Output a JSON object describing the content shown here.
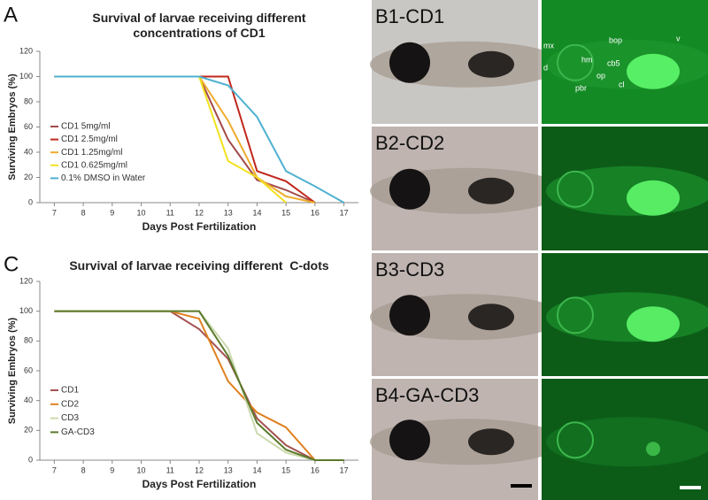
{
  "chart_data": [
    {
      "type": "line",
      "panel_label": "A",
      "title": "Survival of larvae receiving different concentrations of CD1",
      "x_label": "Days Post Fertilization",
      "y_label": "Surviving Embryos (%)",
      "x": [
        7,
        8,
        9,
        10,
        11,
        12,
        13,
        14,
        15,
        16,
        17
      ],
      "xlim": [
        6.5,
        17.5
      ],
      "xticks": [
        7,
        8,
        9,
        10,
        11,
        12,
        13,
        14,
        15,
        16,
        17
      ],
      "ylim": [
        0,
        120
      ],
      "yticks": [
        0,
        20,
        40,
        60,
        80,
        100,
        120
      ],
      "grid": false,
      "legend": "center-left",
      "series": [
        {
          "name": "CD1 5mg/ml",
          "color": "#a34a4a",
          "values": [
            100,
            100,
            100,
            100,
            100,
            100,
            50,
            18,
            10,
            0,
            null
          ]
        },
        {
          "name": "CD1 2.5mg/ml",
          "color": "#c0271c",
          "values": [
            100,
            100,
            100,
            100,
            100,
            100,
            100,
            25,
            17,
            0,
            null
          ]
        },
        {
          "name": "CD1 1.25mg/ml",
          "color": "#efac2e",
          "values": [
            100,
            100,
            100,
            100,
            100,
            100,
            65,
            20,
            5,
            0,
            null
          ]
        },
        {
          "name": "CD1 0.625mg/ml",
          "color": "#f2e21e",
          "values": [
            100,
            100,
            100,
            100,
            100,
            100,
            33,
            20,
            0,
            null,
            null
          ]
        },
        {
          "name": "0.1% DMSO in Water",
          "color": "#4fb1d0",
          "values": [
            100,
            100,
            100,
            100,
            100,
            100,
            93,
            68,
            25,
            13,
            0
          ]
        }
      ]
    },
    {
      "type": "line",
      "panel_label": "C",
      "title": "Survival of larvae receiving different  C-dots",
      "x_label": "Days Post Fertilization",
      "y_label": "Surviving Embryos (%)",
      "x": [
        7,
        8,
        9,
        10,
        11,
        12,
        13,
        14,
        15,
        16,
        17
      ],
      "xlim": [
        6.5,
        17.5
      ],
      "xticks": [
        7,
        8,
        9,
        10,
        11,
        12,
        13,
        14,
        15,
        16,
        17
      ],
      "ylim": [
        0,
        120
      ],
      "yticks": [
        0,
        20,
        40,
        60,
        80,
        100,
        120
      ],
      "grid": false,
      "legend": "lower-left",
      "series": [
        {
          "name": "CD1",
          "color": "#a45252",
          "values": [
            100,
            100,
            100,
            100,
            100,
            88,
            68,
            28,
            10,
            0,
            0
          ]
        },
        {
          "name": "CD2",
          "color": "#e0801e",
          "values": [
            100,
            100,
            100,
            100,
            100,
            95,
            53,
            32,
            22,
            0,
            0
          ]
        },
        {
          "name": "CD3",
          "color": "#cbd9ad",
          "values": [
            100,
            100,
            100,
            100,
            100,
            100,
            75,
            18,
            5,
            0,
            0
          ]
        },
        {
          "name": "GA-CD3",
          "color": "#5b7a2b",
          "values": [
            100,
            100,
            100,
            100,
            100,
            100,
            70,
            25,
            7,
            0,
            0
          ]
        }
      ]
    }
  ],
  "images": [
    {
      "label": "B1-CD1",
      "annotations": [
        "mx",
        "bop",
        "v",
        "hm",
        "cb5",
        "d",
        "op",
        "cl",
        "pbr"
      ]
    },
    {
      "label": "B2-CD2"
    },
    {
      "label": "B3-CD3"
    },
    {
      "label": "B4-GA-CD3"
    }
  ]
}
